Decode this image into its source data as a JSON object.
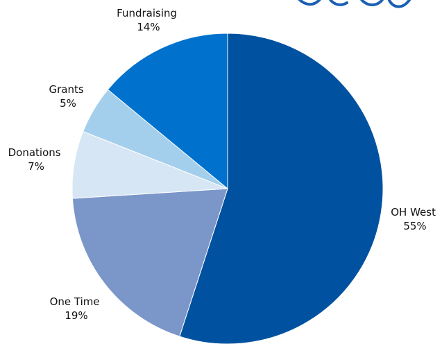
{
  "chart_data": {
    "type": "pie",
    "title": "",
    "slices": [
      {
        "label": "OH West",
        "value": 55,
        "value_label": "55%",
        "color": "#0052A0"
      },
      {
        "label": "One Time",
        "value": 19,
        "value_label": "19%",
        "color": "#7B96C8"
      },
      {
        "label": "Donations",
        "value": 7,
        "value_label": "7%",
        "color": "#D6E6F4"
      },
      {
        "label": "Grants",
        "value": 5,
        "value_label": "5%",
        "color": "#A3CFEC"
      },
      {
        "label": "Fundraising",
        "value": 14,
        "value_label": "14%",
        "color": "#0072CE"
      }
    ],
    "start": "12 o'clock",
    "direction": "clockwise",
    "legend": "none",
    "labels": "outside slices"
  }
}
